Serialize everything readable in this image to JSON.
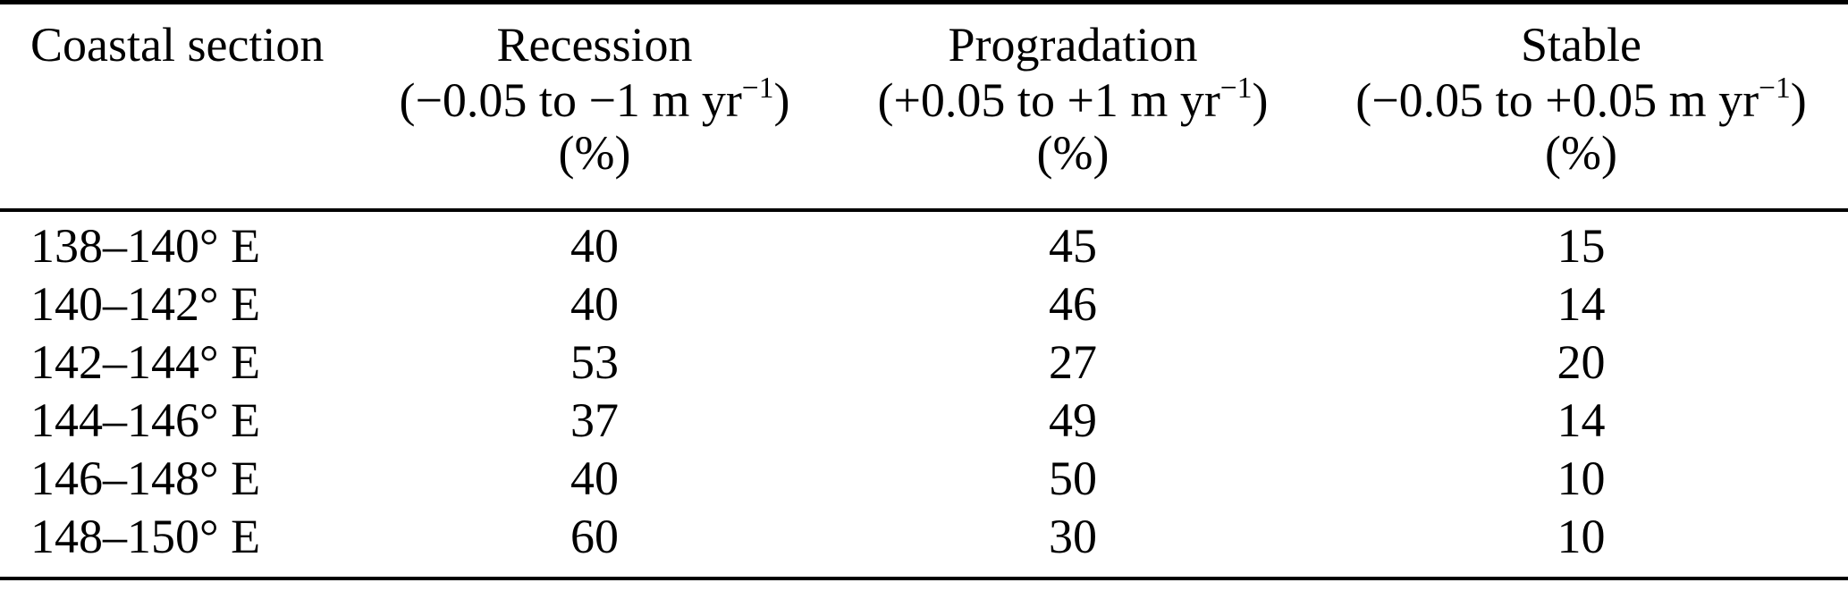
{
  "colors": {
    "text": "#000000",
    "background": "#ffffff",
    "rule": "#000000"
  },
  "table": {
    "columns": {
      "section": {
        "label": "Coastal section"
      },
      "recession": {
        "title": "Recession",
        "range_pre": "(−0.05 to −1 m yr",
        "range_sup": "−1",
        "range_post": ")",
        "unit": "(%)"
      },
      "progradation": {
        "title": "Progradation",
        "range_pre": "(+0.05 to +1 m yr",
        "range_sup": "−1",
        "range_post": ")",
        "unit": "(%)"
      },
      "stable": {
        "title": "Stable",
        "range_pre": "(−0.05 to +0.05 m yr",
        "range_sup": "−1",
        "range_post": ")",
        "unit": "(%)"
      }
    },
    "rows": [
      {
        "section": "138–140° E",
        "recession": "40",
        "progradation": "45",
        "stable": "15"
      },
      {
        "section": "140–142° E",
        "recession": "40",
        "progradation": "46",
        "stable": "14"
      },
      {
        "section": "142–144° E",
        "recession": "53",
        "progradation": "27",
        "stable": "20"
      },
      {
        "section": "144–146° E",
        "recession": "37",
        "progradation": "49",
        "stable": "14"
      },
      {
        "section": "146–148° E",
        "recession": "40",
        "progradation": "50",
        "stable": "10"
      },
      {
        "section": "148–150° E",
        "recession": "60",
        "progradation": "30",
        "stable": "10"
      }
    ]
  }
}
